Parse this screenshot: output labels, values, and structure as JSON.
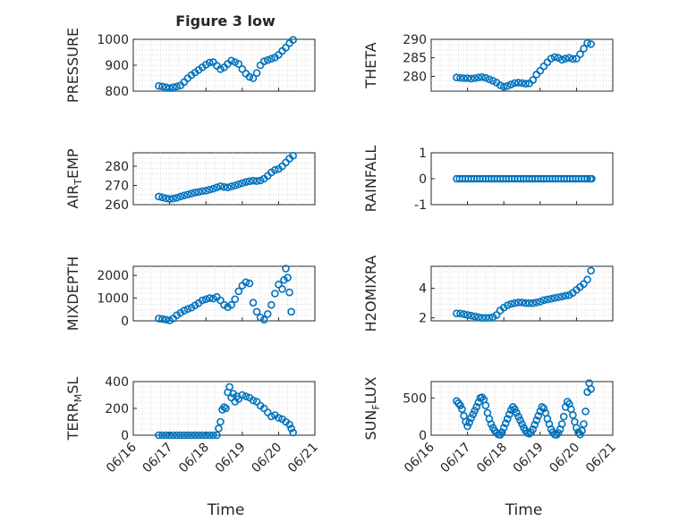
{
  "figure": {
    "title": "Figure 3 low",
    "marker_color": "#0072BD",
    "x_label": "Time"
  },
  "chart_data": [
    {
      "type": "scatter",
      "id": "pressure",
      "ylabel": "PRESSURE",
      "ylim": [
        800,
        1000
      ],
      "yticks": [
        800,
        900,
        1000
      ],
      "ytick_labels": [
        "800",
        "900",
        "1000"
      ],
      "xlim": [
        0,
        5
      ],
      "xticks": [
        0,
        1,
        2,
        3,
        4,
        5
      ],
      "xtick_labels": [
        "06/16",
        "06/17",
        "06/18",
        "06/19",
        "06/20",
        "06/21"
      ],
      "show_xtick_labels": false,
      "grid": true,
      "minor_grid": true,
      "x": [
        0.7,
        0.8,
        0.9,
        1.0,
        1.1,
        1.2,
        1.3,
        1.4,
        1.5,
        1.6,
        1.7,
        1.8,
        1.9,
        2.0,
        2.1,
        2.2,
        2.3,
        2.4,
        2.5,
        2.6,
        2.7,
        2.8,
        2.9,
        3.0,
        3.1,
        3.2,
        3.3,
        3.4,
        3.5,
        3.6,
        3.7,
        3.8,
        3.9,
        4.0,
        4.1,
        4.2,
        4.3,
        4.4
      ],
      "values": [
        820,
        818,
        815,
        812,
        815,
        818,
        822,
        835,
        850,
        862,
        872,
        882,
        892,
        902,
        910,
        912,
        898,
        885,
        892,
        905,
        918,
        912,
        905,
        885,
        868,
        855,
        850,
        870,
        900,
        915,
        920,
        925,
        930,
        940,
        955,
        968,
        985,
        998
      ]
    },
    {
      "type": "scatter",
      "id": "theta",
      "ylabel": "THETA",
      "ylim": [
        276,
        290
      ],
      "yticks": [
        280,
        285,
        290
      ],
      "ytick_labels": [
        "280",
        "285",
        "290"
      ],
      "xlim": [
        0,
        5
      ],
      "xticks": [
        0,
        1,
        2,
        3,
        4,
        5
      ],
      "xtick_labels": [
        "06/16",
        "06/17",
        "06/18",
        "06/19",
        "06/20",
        "06/21"
      ],
      "show_xtick_labels": false,
      "grid": true,
      "minor_grid": true,
      "x": [
        0.7,
        0.8,
        0.9,
        1.0,
        1.1,
        1.2,
        1.3,
        1.4,
        1.5,
        1.6,
        1.7,
        1.8,
        1.9,
        2.0,
        2.1,
        2.2,
        2.3,
        2.4,
        2.5,
        2.6,
        2.7,
        2.8,
        2.9,
        3.0,
        3.1,
        3.2,
        3.3,
        3.4,
        3.5,
        3.6,
        3.7,
        3.8,
        3.9,
        4.0,
        4.1,
        4.2,
        4.3,
        4.4
      ],
      "values": [
        279.7,
        279.6,
        279.5,
        279.5,
        279.4,
        279.5,
        279.7,
        279.8,
        279.6,
        279.2,
        278.8,
        278.3,
        277.6,
        277.2,
        277.4,
        277.8,
        278.2,
        278.3,
        278.2,
        278.0,
        278.1,
        279.0,
        280.5,
        281.5,
        282.7,
        283.8,
        284.8,
        285.2,
        285.0,
        284.5,
        284.8,
        285.0,
        284.7,
        284.8,
        286.0,
        287.5,
        289.0,
        288.7
      ]
    },
    {
      "type": "scatter",
      "id": "air_temp",
      "ylabel": "AIR_TEMP",
      "ylabel_main": "AIR",
      "ylabel_sub": "T",
      "ylabel_rest": "EMP",
      "ylim": [
        260,
        287
      ],
      "yticks": [
        260,
        270,
        280
      ],
      "ytick_labels": [
        "260",
        "270",
        "280"
      ],
      "xlim": [
        0,
        5
      ],
      "xticks": [
        0,
        1,
        2,
        3,
        4,
        5
      ],
      "xtick_labels": [
        "06/16",
        "06/17",
        "06/18",
        "06/19",
        "06/20",
        "06/21"
      ],
      "show_xtick_labels": false,
      "grid": true,
      "minor_grid": true,
      "x": [
        0.7,
        0.8,
        0.9,
        1.0,
        1.1,
        1.2,
        1.3,
        1.4,
        1.5,
        1.6,
        1.7,
        1.8,
        1.9,
        2.0,
        2.1,
        2.2,
        2.3,
        2.4,
        2.5,
        2.6,
        2.7,
        2.8,
        2.9,
        3.0,
        3.1,
        3.2,
        3.3,
        3.4,
        3.5,
        3.6,
        3.7,
        3.8,
        3.9,
        4.0,
        4.1,
        4.2,
        4.3,
        4.4
      ],
      "values": [
        264.2,
        263.8,
        263.3,
        263.0,
        263.2,
        263.6,
        264.2,
        264.8,
        265.3,
        265.8,
        266.3,
        266.6,
        267.0,
        267.3,
        267.8,
        268.3,
        269.0,
        269.6,
        269.2,
        269.0,
        269.5,
        270.0,
        270.6,
        271.2,
        271.8,
        272.2,
        272.5,
        272.3,
        272.6,
        273.5,
        275.0,
        276.8,
        278.0,
        278.6,
        280.0,
        282.0,
        284.0,
        285.5
      ]
    },
    {
      "type": "scatter",
      "id": "rainfall",
      "ylabel": "RAINFALL",
      "ylim": [
        -1,
        1
      ],
      "yticks": [
        -1,
        0,
        1
      ],
      "ytick_labels": [
        "-1",
        "0",
        "1"
      ],
      "xlim": [
        0,
        5
      ],
      "xticks": [
        0,
        1,
        2,
        3,
        4,
        5
      ],
      "xtick_labels": [
        "06/16",
        "06/17",
        "06/18",
        "06/19",
        "06/20",
        "06/21"
      ],
      "show_xtick_labels": false,
      "grid": false,
      "minor_grid": false,
      "x": [
        0.7,
        0.78,
        0.86,
        0.94,
        1.02,
        1.1,
        1.18,
        1.26,
        1.34,
        1.42,
        1.5,
        1.58,
        1.66,
        1.74,
        1.82,
        1.9,
        1.98,
        2.06,
        2.14,
        2.22,
        2.3,
        2.38,
        2.46,
        2.54,
        2.62,
        2.7,
        2.78,
        2.86,
        2.94,
        3.02,
        3.1,
        3.18,
        3.26,
        3.34,
        3.42,
        3.5,
        3.58,
        3.66,
        3.74,
        3.82,
        3.9,
        3.98,
        4.06,
        4.14,
        4.22,
        4.3,
        4.38,
        4.42
      ],
      "values": [
        0,
        0,
        0,
        0,
        0,
        0,
        0,
        0,
        0,
        0,
        0,
        0,
        0,
        0,
        0,
        0,
        0,
        0,
        0,
        0,
        0,
        0,
        0,
        0,
        0,
        0,
        0,
        0,
        0,
        0,
        0,
        0,
        0,
        0,
        0,
        0,
        0,
        0,
        0,
        0,
        0,
        0,
        0,
        0,
        0,
        0,
        0,
        0
      ]
    },
    {
      "type": "scatter",
      "id": "mixdepth",
      "ylabel": "MIXDEPTH",
      "ylim": [
        0,
        2400
      ],
      "yticks": [
        0,
        1000,
        2000
      ],
      "ytick_labels": [
        "0",
        "1000",
        "2000"
      ],
      "xlim": [
        0,
        5
      ],
      "xticks": [
        0,
        1,
        2,
        3,
        4,
        5
      ],
      "xtick_labels": [
        "06/16",
        "06/17",
        "06/18",
        "06/19",
        "06/20",
        "06/21"
      ],
      "show_xtick_labels": false,
      "grid": true,
      "minor_grid": true,
      "x": [
        0.7,
        0.8,
        0.9,
        1.0,
        1.1,
        1.2,
        1.3,
        1.4,
        1.5,
        1.6,
        1.7,
        1.8,
        1.9,
        2.0,
        2.1,
        2.2,
        2.3,
        2.4,
        2.5,
        2.6,
        2.7,
        2.8,
        2.9,
        3.0,
        3.1,
        3.2,
        3.3,
        3.4,
        3.5,
        3.6,
        3.7,
        3.8,
        3.9,
        4.0,
        4.1,
        4.15,
        4.2,
        4.25,
        4.3,
        4.35
      ],
      "values": [
        100,
        80,
        50,
        20,
        100,
        250,
        350,
        450,
        520,
        580,
        680,
        780,
        900,
        950,
        1000,
        980,
        1050,
        900,
        700,
        600,
        700,
        950,
        1300,
        1550,
        1700,
        1650,
        800,
        400,
        150,
        50,
        300,
        700,
        1200,
        1600,
        1400,
        1800,
        2300,
        1900,
        1250,
        400
      ]
    },
    {
      "type": "scatter",
      "id": "h2omixra",
      "ylabel": "H2OMIXRA",
      "ylim": [
        1.8,
        5.5
      ],
      "yticks": [
        2,
        4
      ],
      "ytick_labels": [
        "2",
        "4"
      ],
      "xlim": [
        0,
        5
      ],
      "xticks": [
        0,
        1,
        2,
        3,
        4,
        5
      ],
      "xtick_labels": [
        "06/16",
        "06/17",
        "06/18",
        "06/19",
        "06/20",
        "06/21"
      ],
      "show_xtick_labels": false,
      "grid": true,
      "minor_grid": true,
      "x": [
        0.7,
        0.8,
        0.9,
        1.0,
        1.1,
        1.2,
        1.3,
        1.4,
        1.5,
        1.6,
        1.7,
        1.8,
        1.9,
        2.0,
        2.1,
        2.2,
        2.3,
        2.4,
        2.5,
        2.6,
        2.7,
        2.8,
        2.9,
        3.0,
        3.1,
        3.2,
        3.3,
        3.4,
        3.5,
        3.6,
        3.7,
        3.8,
        3.9,
        4.0,
        4.1,
        4.2,
        4.3,
        4.4
      ],
      "values": [
        2.3,
        2.3,
        2.25,
        2.2,
        2.15,
        2.1,
        2.05,
        2.0,
        2.0,
        2.0,
        2.05,
        2.2,
        2.5,
        2.7,
        2.85,
        2.95,
        3.0,
        3.05,
        3.05,
        3.0,
        3.0,
        3.0,
        3.05,
        3.1,
        3.2,
        3.25,
        3.3,
        3.35,
        3.4,
        3.45,
        3.5,
        3.55,
        3.7,
        3.9,
        4.1,
        4.3,
        4.6,
        5.2
      ]
    },
    {
      "type": "scatter",
      "id": "terr_msl",
      "ylabel": "TERR_MSL",
      "ylabel_main": "TERR",
      "ylabel_sub": "M",
      "ylabel_rest": "SL",
      "ylim": [
        0,
        400
      ],
      "yticks": [
        0,
        200,
        400
      ],
      "ytick_labels": [
        "0",
        "200",
        "400"
      ],
      "xlim": [
        0,
        5
      ],
      "xticks": [
        0,
        1,
        2,
        3,
        4,
        5
      ],
      "xtick_labels": [
        "06/16",
        "06/17",
        "06/18",
        "06/19",
        "06/20",
        "06/21"
      ],
      "show_xtick_labels": true,
      "grid": true,
      "minor_grid": true,
      "x": [
        0.7,
        0.8,
        0.9,
        1.0,
        1.1,
        1.2,
        1.3,
        1.4,
        1.5,
        1.6,
        1.7,
        1.8,
        1.9,
        2.0,
        2.1,
        2.2,
        2.3,
        2.35,
        2.4,
        2.45,
        2.5,
        2.55,
        2.6,
        2.65,
        2.7,
        2.75,
        2.8,
        2.85,
        2.9,
        3.0,
        3.1,
        3.2,
        3.3,
        3.4,
        3.5,
        3.6,
        3.7,
        3.8,
        3.9,
        4.0,
        4.1,
        4.2,
        4.3,
        4.35,
        4.4
      ],
      "values": [
        0,
        0,
        0,
        0,
        0,
        0,
        0,
        0,
        0,
        0,
        0,
        0,
        0,
        0,
        0,
        0,
        0,
        50,
        100,
        190,
        210,
        200,
        320,
        360,
        280,
        310,
        250,
        290,
        270,
        300,
        290,
        280,
        260,
        250,
        220,
        200,
        170,
        140,
        150,
        130,
        120,
        100,
        80,
        50,
        20
      ]
    },
    {
      "type": "scatter",
      "id": "sun_flux",
      "ylabel": "SUN_FLUX",
      "ylabel_main": "SUN",
      "ylabel_sub": "F",
      "ylabel_rest": "LUX",
      "ylim": [
        0,
        720
      ],
      "yticks": [
        0,
        500
      ],
      "ytick_labels": [
        "0",
        "500"
      ],
      "xlim": [
        0,
        5
      ],
      "xticks": [
        0,
        1,
        2,
        3,
        4,
        5
      ],
      "xtick_labels": [
        "06/16",
        "06/17",
        "06/18",
        "06/19",
        "06/20",
        "06/21"
      ],
      "show_xtick_labels": true,
      "grid": true,
      "minor_grid": true,
      "x": [
        0.7,
        0.75,
        0.8,
        0.85,
        0.9,
        0.95,
        1.0,
        1.05,
        1.1,
        1.15,
        1.2,
        1.25,
        1.3,
        1.35,
        1.4,
        1.45,
        1.5,
        1.55,
        1.6,
        1.65,
        1.7,
        1.75,
        1.8,
        1.85,
        1.9,
        1.95,
        2.0,
        2.05,
        2.1,
        2.15,
        2.2,
        2.25,
        2.3,
        2.35,
        2.4,
        2.45,
        2.5,
        2.55,
        2.6,
        2.65,
        2.7,
        2.75,
        2.8,
        2.85,
        2.9,
        2.95,
        3.0,
        3.05,
        3.1,
        3.15,
        3.2,
        3.25,
        3.3,
        3.35,
        3.4,
        3.45,
        3.5,
        3.55,
        3.6,
        3.65,
        3.7,
        3.75,
        3.8,
        3.85,
        3.9,
        3.95,
        4.0,
        4.05,
        4.1,
        4.15,
        4.2,
        4.25,
        4.3,
        4.35,
        4.4
      ],
      "values": [
        460,
        430,
        400,
        350,
        260,
        180,
        120,
        170,
        230,
        280,
        330,
        380,
        440,
        500,
        510,
        480,
        400,
        300,
        220,
        150,
        100,
        60,
        30,
        10,
        5,
        40,
        100,
        160,
        220,
        280,
        340,
        380,
        350,
        300,
        250,
        200,
        150,
        100,
        60,
        30,
        20,
        40,
        80,
        140,
        200,
        260,
        320,
        380,
        360,
        300,
        220,
        150,
        80,
        40,
        10,
        5,
        30,
        80,
        150,
        250,
        380,
        450,
        420,
        350,
        270,
        180,
        100,
        40,
        10,
        60,
        150,
        320,
        580,
        700,
        620
      ]
    }
  ]
}
